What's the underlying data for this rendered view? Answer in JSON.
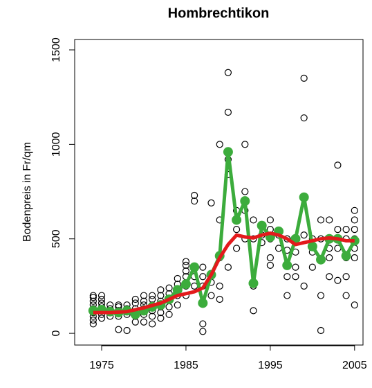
{
  "chart_data": {
    "type": "scatter",
    "title": "Hombrechtikon",
    "y_label": "Bodenpreis in Fr/qm",
    "xlim": [
      1971.8,
      2006
    ],
    "ylim": [
      -62,
      1555
    ],
    "xticks": [
      1975,
      1985,
      1995,
      2005
    ],
    "yticks": [
      0,
      500,
      1000,
      1500
    ],
    "series": [
      {
        "type": "scatter",
        "color": "#000000",
        "x": [
          1974,
          1974,
          1974,
          1974,
          1974,
          1974,
          1974,
          1974,
          1974,
          1975,
          1975,
          1975,
          1975,
          1975,
          1975,
          1975,
          1976,
          1976,
          1976,
          1976,
          1977,
          1977,
          1977,
          1977,
          1977,
          1978,
          1978,
          1978,
          1978,
          1979,
          1979,
          1979,
          1979,
          1979,
          1979,
          1980,
          1980,
          1980,
          1980,
          1980,
          1980,
          1981,
          1981,
          1981,
          1981,
          1981,
          1981,
          1982,
          1982,
          1982,
          1982,
          1982,
          1982,
          1983,
          1983,
          1983,
          1983,
          1983,
          1984,
          1984,
          1984,
          1984,
          1984,
          1985,
          1985,
          1985,
          1985,
          1985,
          1985,
          1986,
          1986,
          1986,
          1986,
          1986,
          1987,
          1987,
          1987,
          1987,
          1987,
          1987,
          1988,
          1988,
          1988,
          1988,
          1989,
          1989,
          1989,
          1989,
          1989,
          1990,
          1990,
          1990,
          1990,
          1990,
          1991,
          1991,
          1991,
          1991,
          1992,
          1992,
          1992,
          1992,
          1992,
          1993,
          1993,
          1993,
          1993,
          1994,
          1994,
          1994,
          1995,
          1995,
          1995,
          1995,
          1995,
          1996,
          1996,
          1996,
          1997,
          1997,
          1997,
          1997,
          1997,
          1998,
          1998,
          1998,
          1998,
          1999,
          1999,
          1999,
          1999,
          1999,
          2000,
          2000,
          2000,
          2000,
          2001,
          2001,
          2001,
          2001,
          2001,
          2002,
          2002,
          2002,
          2002,
          2002,
          2003,
          2003,
          2003,
          2003,
          2003,
          2004,
          2004,
          2004,
          2004,
          2004,
          2005,
          2005,
          2005,
          2005,
          2005,
          2005,
          2005
        ],
        "values": [
          50,
          70,
          90,
          110,
          130,
          150,
          170,
          190,
          200,
          80,
          100,
          120,
          140,
          160,
          180,
          200,
          90,
          110,
          130,
          150,
          20,
          90,
          120,
          140,
          150,
          15,
          100,
          130,
          150,
          60,
          90,
          110,
          130,
          160,
          180,
          60,
          100,
          130,
          150,
          170,
          200,
          50,
          90,
          120,
          150,
          180,
          200,
          80,
          110,
          140,
          170,
          200,
          230,
          100,
          140,
          180,
          210,
          240,
          150,
          200,
          230,
          260,
          290,
          200,
          250,
          300,
          330,
          360,
          380,
          250,
          300,
          350,
          700,
          730,
          10,
          50,
          160,
          250,
          300,
          350,
          200,
          270,
          310,
          690,
          180,
          250,
          400,
          600,
          1000,
          350,
          840,
          920,
          1170,
          1380,
          450,
          550,
          600,
          650,
          500,
          650,
          700,
          750,
          1000,
          120,
          250,
          500,
          600,
          480,
          520,
          570,
          360,
          400,
          500,
          550,
          600,
          450,
          520,
          540,
          200,
          300,
          360,
          440,
          500,
          300,
          350,
          430,
          500,
          250,
          520,
          720,
          1140,
          1350,
          350,
          430,
          460,
          500,
          15,
          200,
          390,
          500,
          600,
          300,
          400,
          450,
          500,
          600,
          280,
          450,
          500,
          550,
          890,
          200,
          300,
          400,
          500,
          550,
          150,
          400,
          450,
          500,
          550,
          600,
          650
        ]
      },
      {
        "type": "line",
        "color": "#3cac3c",
        "markers": true,
        "x": [
          1974,
          1975,
          1976,
          1977,
          1978,
          1979,
          1980,
          1981,
          1982,
          1983,
          1984,
          1985,
          1986,
          1987,
          1988,
          1989,
          1990,
          1991,
          1992,
          1993,
          1994,
          1995,
          1996,
          1997,
          1998,
          1999,
          2000,
          2001,
          2002,
          2003,
          2004,
          2005
        ],
        "values": [
          120,
          125,
          115,
          110,
          120,
          100,
          120,
          140,
          150,
          180,
          230,
          260,
          350,
          160,
          310,
          410,
          960,
          600,
          700,
          265,
          570,
          510,
          540,
          360,
          500,
          720,
          460,
          390,
          500,
          500,
          410,
          490
        ]
      },
      {
        "type": "line",
        "color": "#e31a1c",
        "markers": false,
        "x": [
          1974,
          1976,
          1978,
          1980,
          1982,
          1984,
          1986,
          1987,
          1988,
          1989,
          1990,
          1991,
          1992,
          1993,
          1994,
          1995,
          1996,
          1997,
          1998,
          1999,
          2000,
          2001,
          2002,
          2003,
          2004,
          2005
        ],
        "values": [
          110,
          110,
          115,
          135,
          160,
          200,
          220,
          240,
          310,
          400,
          470,
          520,
          510,
          505,
          520,
          530,
          520,
          500,
          470,
          480,
          490,
          500,
          505,
          500,
          490,
          490
        ]
      }
    ]
  }
}
